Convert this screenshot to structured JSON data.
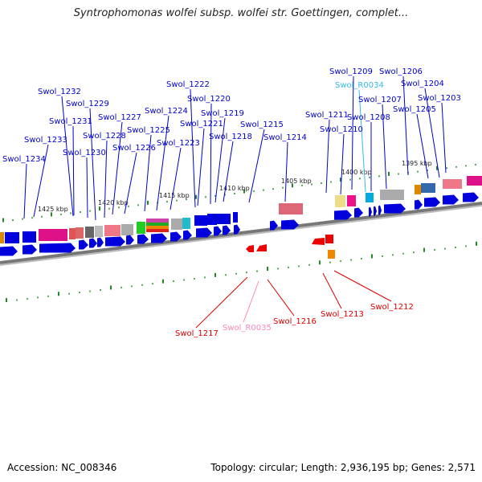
{
  "title": "Syntrophomonas wolfei subsp. wolfei str. Goettingen, complet...",
  "accession_text": "Accession: NC_008346",
  "topology_text": "Topology: circular; Length: 2,936,195 bp; Genes: 2,571",
  "kbp_labels": [
    "1425 kbp",
    "1420 kbp",
    "1415 kbp",
    "1410 kbp",
    "1405 kbp",
    "1400 kbp",
    "1395 kbp"
  ],
  "top_labels": [
    {
      "text": "Swol_1234",
      "color": "#0000cc"
    },
    {
      "text": "Swol_1233",
      "color": "#0000cc"
    },
    {
      "text": "Swol_1232",
      "color": "#0000cc"
    },
    {
      "text": "Swol_1231",
      "color": "#0000cc"
    },
    {
      "text": "Swol_1230",
      "color": "#0000cc"
    },
    {
      "text": "Swol_1229",
      "color": "#0000cc"
    },
    {
      "text": "Swol_1228",
      "color": "#0000cc"
    },
    {
      "text": "Swol_1227",
      "color": "#0000cc"
    },
    {
      "text": "Swol_1226",
      "color": "#0000cc"
    },
    {
      "text": "Swol_1225",
      "color": "#0000cc"
    },
    {
      "text": "Swol_1224",
      "color": "#0000cc"
    },
    {
      "text": "Swol_1223",
      "color": "#0000cc"
    },
    {
      "text": "Swol_1222",
      "color": "#0000cc"
    },
    {
      "text": "Swol_1221",
      "color": "#0000cc"
    },
    {
      "text": "Swol_1220",
      "color": "#0000cc"
    },
    {
      "text": "Swol_1219",
      "color": "#0000cc"
    },
    {
      "text": "Swol_1218",
      "color": "#0000cc"
    },
    {
      "text": "Swol_1215",
      "color": "#0000cc"
    },
    {
      "text": "Swol_1214",
      "color": "#0000cc"
    },
    {
      "text": "Swol_1211",
      "color": "#0000cc"
    },
    {
      "text": "Swol_1210",
      "color": "#0000cc"
    },
    {
      "text": "Swol_1209",
      "color": "#0000cc"
    },
    {
      "text": "Swol_R0034",
      "color": "#33bbee"
    },
    {
      "text": "Swol_1208",
      "color": "#0000cc"
    },
    {
      "text": "Swol_1207",
      "color": "#0000cc"
    },
    {
      "text": "Swol_1206",
      "color": "#0000cc"
    },
    {
      "text": "Swol_1205",
      "color": "#0000cc"
    },
    {
      "text": "Swol_1204",
      "color": "#0000cc"
    },
    {
      "text": "Swol_1203",
      "color": "#0000cc"
    }
  ],
  "bottom_labels": [
    {
      "text": "Swol_1217",
      "color": "#dd0000"
    },
    {
      "text": "Swol_R0035",
      "color": "#ff88bb"
    },
    {
      "text": "Swol_1216",
      "color": "#dd0000"
    },
    {
      "text": "Swol_1213",
      "color": "#dd0000"
    },
    {
      "text": "Swol_1212",
      "color": "#dd0000"
    }
  ],
  "colors": {
    "label_blue": "#0000cc",
    "label_red": "#dd0000",
    "gene_blue": "#0000dd",
    "gene_red": "#ee0000",
    "tick_green": "#228822",
    "backbone": "#888888"
  }
}
